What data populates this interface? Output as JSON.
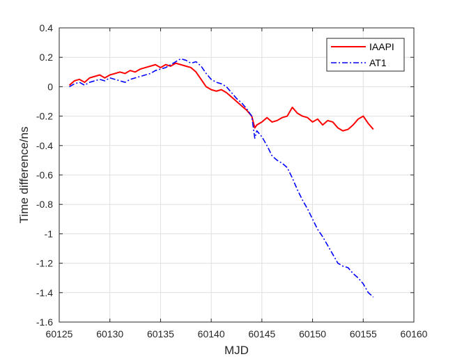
{
  "chart_data": {
    "type": "line",
    "title": "",
    "xlabel": "MJD",
    "ylabel": "Time difference/ns",
    "xlim": [
      60125,
      60160
    ],
    "ylim": [
      -1.6,
      0.4
    ],
    "xticks": [
      60125,
      60130,
      60135,
      60140,
      60145,
      60150,
      60155,
      60160
    ],
    "yticks": [
      0.4,
      0.2,
      0,
      -0.2,
      -0.4,
      -0.6,
      -0.8,
      -1,
      -1.2,
      -1.4,
      -1.6
    ],
    "grid": true,
    "legend_position": "top-right",
    "series": [
      {
        "name": "IAAPI",
        "color": "#ff0000",
        "style": "solid",
        "x": [
          60126.0,
          60126.5,
          60127.0,
          60127.5,
          60128.0,
          60128.5,
          60129.0,
          60129.5,
          60130.0,
          60130.5,
          60131.0,
          60131.5,
          60132.0,
          60132.5,
          60133.0,
          60133.5,
          60134.0,
          60134.5,
          60135.0,
          60135.5,
          60136.0,
          60136.5,
          60137.0,
          60137.5,
          60138.0,
          60138.5,
          60139.0,
          60139.5,
          60140.0,
          60140.5,
          60141.0,
          60141.5,
          60142.0,
          60142.5,
          60143.0,
          60143.5,
          60144.0,
          60144.3,
          60144.5,
          60145.0,
          60145.5,
          60146.0,
          60146.5,
          60147.0,
          60147.5,
          60148.0,
          60148.5,
          60149.0,
          60149.5,
          60150.0,
          60150.5,
          60151.0,
          60151.5,
          60152.0,
          60152.5,
          60153.0,
          60153.5,
          60154.0,
          60154.5,
          60155.0,
          60155.5,
          60156.0
        ],
        "y": [
          0.01,
          0.04,
          0.05,
          0.03,
          0.06,
          0.07,
          0.08,
          0.06,
          0.08,
          0.09,
          0.1,
          0.09,
          0.11,
          0.1,
          0.12,
          0.13,
          0.14,
          0.15,
          0.13,
          0.15,
          0.14,
          0.16,
          0.15,
          0.14,
          0.13,
          0.1,
          0.05,
          0.0,
          -0.02,
          -0.03,
          -0.02,
          -0.04,
          -0.07,
          -0.1,
          -0.13,
          -0.16,
          -0.2,
          -0.28,
          -0.26,
          -0.24,
          -0.21,
          -0.24,
          -0.23,
          -0.21,
          -0.2,
          -0.14,
          -0.18,
          -0.2,
          -0.21,
          -0.24,
          -0.22,
          -0.26,
          -0.23,
          -0.24,
          -0.28,
          -0.3,
          -0.29,
          -0.26,
          -0.22,
          -0.2,
          -0.25,
          -0.29
        ]
      },
      {
        "name": "AT1",
        "color": "#0000ff",
        "style": "dashdot",
        "x": [
          60126.0,
          60126.5,
          60127.0,
          60127.5,
          60128.0,
          60128.5,
          60129.0,
          60129.5,
          60130.0,
          60130.5,
          60131.0,
          60131.5,
          60132.0,
          60132.5,
          60133.0,
          60133.5,
          60134.0,
          60134.5,
          60135.0,
          60135.5,
          60136.0,
          60136.5,
          60137.0,
          60137.5,
          60138.0,
          60138.5,
          60139.0,
          60139.5,
          60140.0,
          60140.5,
          60141.0,
          60141.5,
          60142.0,
          60142.5,
          60143.0,
          60143.5,
          60144.0,
          60144.3,
          60144.5,
          60145.0,
          60145.5,
          60146.0,
          60146.5,
          60147.0,
          60147.5,
          60148.0,
          60148.5,
          60149.0,
          60149.5,
          60150.0,
          60150.5,
          60151.0,
          60151.5,
          60152.0,
          60152.5,
          60153.0,
          60153.5,
          60154.0,
          60154.5,
          60155.0,
          60155.5,
          60156.0
        ],
        "y": [
          0.0,
          0.02,
          0.03,
          0.01,
          0.03,
          0.04,
          0.05,
          0.04,
          0.06,
          0.05,
          0.04,
          0.03,
          0.05,
          0.06,
          0.07,
          0.08,
          0.09,
          0.11,
          0.12,
          0.13,
          0.15,
          0.17,
          0.19,
          0.18,
          0.16,
          0.17,
          0.14,
          0.09,
          0.05,
          0.03,
          0.02,
          0.0,
          -0.04,
          -0.08,
          -0.11,
          -0.15,
          -0.2,
          -0.35,
          -0.3,
          -0.34,
          -0.4,
          -0.47,
          -0.5,
          -0.52,
          -0.55,
          -0.62,
          -0.7,
          -0.77,
          -0.83,
          -0.9,
          -0.97,
          -1.02,
          -1.08,
          -1.14,
          -1.2,
          -1.22,
          -1.23,
          -1.27,
          -1.3,
          -1.34,
          -1.4,
          -1.43
        ]
      }
    ]
  }
}
